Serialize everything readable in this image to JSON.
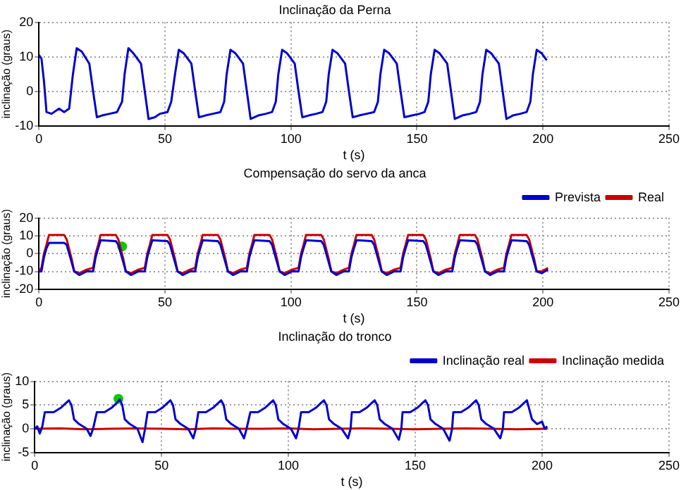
{
  "chart_data": [
    {
      "type": "line",
      "title": "Inclinação da Perna",
      "xlabel": "t (s)",
      "ylabel": "inclinação (graus)",
      "xlim": [
        0,
        250
      ],
      "xticks": [
        0,
        50,
        100,
        150,
        200,
        250
      ],
      "ylim": [
        -10,
        20
      ],
      "yticks": [
        -10,
        0,
        10,
        20
      ],
      "grid": true,
      "legend": false,
      "series": [
        {
          "color": "#0000cc",
          "x": [
            0,
            1,
            2,
            3,
            5,
            8,
            10,
            12,
            13.5,
            15,
            17,
            20,
            21.5,
            23,
            25,
            28,
            31,
            33,
            34,
            35.5,
            37.5,
            40.5,
            42,
            43.5,
            46,
            48,
            51,
            52.5,
            54,
            55.5,
            57.5,
            60.5,
            62,
            63.5,
            66,
            69,
            72,
            73.5,
            74.5,
            76,
            78,
            81,
            82.5,
            84,
            87,
            90,
            92.5,
            94,
            95,
            96.5,
            98.5,
            101.5,
            103,
            104.5,
            107,
            110,
            112.5,
            114,
            115,
            116.5,
            118.5,
            121.5,
            123,
            124.5,
            127,
            130,
            133,
            134.5,
            135.5,
            137,
            139,
            142,
            143.5,
            145,
            148,
            151,
            153,
            154.5,
            155.5,
            157,
            159,
            162,
            163.5,
            165,
            168,
            171,
            173.5,
            175,
            176,
            177.5,
            179.5,
            182.5,
            184,
            185.5,
            188,
            191,
            193.5,
            195,
            196,
            197.5,
            199.5,
            201.5
          ],
          "values": [
            10.5,
            9.5,
            3,
            -6,
            -6.5,
            -5,
            -6,
            -5,
            5,
            12.5,
            11.5,
            8,
            0,
            -7.5,
            -7,
            -6.5,
            -6,
            -3,
            5,
            12.5,
            11,
            8,
            0,
            -8,
            -7.5,
            -6.5,
            -6,
            -3,
            5,
            12,
            11,
            8,
            0,
            -7.5,
            -7,
            -6.5,
            -6,
            -3,
            5,
            12,
            11,
            8,
            0,
            -8,
            -7,
            -6.5,
            -6,
            -3,
            5,
            12,
            11,
            8,
            0,
            -7.5,
            -7,
            -6.5,
            -6,
            -3,
            5,
            12,
            11,
            8,
            0,
            -7.5,
            -7,
            -6.5,
            -6,
            -3,
            5,
            12,
            11,
            8,
            0,
            -7.5,
            -7,
            -6.5,
            -6,
            -3,
            5,
            12,
            11,
            8,
            0,
            -8,
            -7,
            -6.5,
            -6,
            -3,
            5,
            12,
            11,
            8,
            0,
            -8,
            -7,
            -6.5,
            -6,
            -3,
            5,
            12,
            11,
            9
          ]
        }
      ]
    },
    {
      "type": "line",
      "title": "Compensação do servo da anca",
      "xlabel": "t (s)",
      "ylabel": "inclinação (graus)",
      "xlim": [
        0,
        250
      ],
      "xticks": [
        0,
        50,
        100,
        150,
        200,
        250
      ],
      "ylim": [
        -20,
        20
      ],
      "yticks": [
        -20,
        -10,
        0,
        10,
        20
      ],
      "grid": true,
      "legend": "top right",
      "series": [
        {
          "name": "Prevista",
          "color": "#0000cc",
          "x": [
            0,
            1,
            2,
            3,
            4,
            10,
            11,
            13,
            14,
            16,
            19,
            21.5,
            22.5,
            23.5,
            24.5,
            30.5,
            31.5,
            33.5,
            34.5,
            36.5,
            39.5,
            42,
            43,
            44,
            45,
            51,
            52,
            54,
            55,
            57,
            60,
            62,
            63,
            64,
            65,
            71,
            72,
            74,
            75,
            77,
            80,
            82.5,
            83.5,
            84.5,
            85.5,
            91.5,
            92.5,
            94.5,
            95.5,
            97.5,
            100.5,
            103,
            104,
            105,
            106,
            112,
            113,
            115,
            116,
            118,
            121,
            123,
            124,
            125,
            126,
            132,
            133,
            135,
            136,
            138,
            141,
            143.5,
            144.5,
            145.5,
            146.5,
            152.5,
            153.5,
            155.5,
            156.5,
            158.5,
            161.5,
            164,
            165,
            166,
            167,
            173,
            174,
            176,
            177,
            179,
            182,
            184.5,
            185.5,
            186.5,
            187.5,
            193.5,
            194.5,
            196.5,
            197.5,
            199.5,
            202
          ],
          "values": [
            -10,
            -10,
            -2,
            3,
            6,
            6,
            5,
            -5,
            -10,
            -12,
            -10,
            -10,
            -2,
            3,
            7.5,
            7,
            5,
            -5,
            -10,
            -12,
            -10,
            -10,
            -2,
            3,
            7.5,
            7,
            5,
            -5,
            -10,
            -12,
            -10,
            -10,
            -2,
            3,
            7.5,
            7,
            5,
            -5,
            -10,
            -12,
            -10,
            -10,
            -2,
            3,
            7.5,
            7,
            5,
            -5,
            -10,
            -12,
            -10,
            -10,
            -2,
            3,
            7.5,
            7,
            5,
            -5,
            -10,
            -12,
            -10,
            -10,
            -2,
            3,
            7.5,
            7,
            5,
            -5,
            -10,
            -12,
            -10,
            -10,
            -2,
            3,
            7.5,
            7,
            5,
            -5,
            -10,
            -12,
            -10,
            -10,
            -2,
            3,
            7.5,
            7,
            5,
            -5,
            -10,
            -12,
            -10,
            -10,
            -2,
            3,
            7.5,
            7,
            5,
            -5,
            -10,
            -11,
            -9
          ]
        },
        {
          "name": "Real",
          "color": "#cc0000",
          "x": [
            0,
            1,
            2,
            3,
            4,
            10,
            11,
            13,
            14,
            16,
            19,
            21.5,
            22.5,
            23.5,
            24.5,
            30.5,
            31.5,
            33.5,
            34.5,
            36.5,
            39.5,
            42,
            43,
            44,
            45,
            51,
            52,
            54,
            55,
            57,
            60,
            62,
            63,
            64,
            65,
            71,
            72,
            74,
            75,
            77,
            80,
            82.5,
            83.5,
            84.5,
            85.5,
            91.5,
            92.5,
            94.5,
            95.5,
            97.5,
            100.5,
            103,
            104,
            105,
            106,
            112,
            113,
            115,
            116,
            118,
            121,
            123,
            124,
            125,
            126,
            132,
            133,
            135,
            136,
            138,
            141,
            143.5,
            144.5,
            145.5,
            146.5,
            152.5,
            153.5,
            155.5,
            156.5,
            158.5,
            161.5,
            164,
            165,
            166,
            167,
            173,
            174,
            176,
            177,
            179,
            182,
            184.5,
            185.5,
            186.5,
            187.5,
            193.5,
            194.5,
            196.5,
            197.5,
            199.5,
            202
          ],
          "values": [
            -10,
            -8,
            0,
            5,
            10.5,
            10.5,
            8,
            -3,
            -10,
            -11,
            -9,
            -8,
            0,
            5,
            10.5,
            10.5,
            8,
            -3,
            -10,
            -11,
            -9,
            -8,
            0,
            5,
            10.5,
            10.5,
            8,
            -3,
            -10,
            -11,
            -9,
            -8,
            0,
            5,
            10.5,
            10.5,
            8,
            -3,
            -10,
            -11,
            -9,
            -8,
            0,
            5,
            10.5,
            10.5,
            8,
            -3,
            -10,
            -11,
            -9,
            -8,
            0,
            5,
            10.5,
            10.5,
            8,
            -3,
            -10,
            -11,
            -9,
            -8,
            0,
            5,
            10.5,
            10.5,
            8,
            -3,
            -10,
            -11,
            -9,
            -8,
            0,
            5,
            10.5,
            10.5,
            8,
            -3,
            -10,
            -11,
            -9,
            -8,
            0,
            5,
            10.5,
            10.5,
            8,
            -3,
            -10,
            -11,
            -9,
            -8,
            0,
            5,
            10.5,
            10.5,
            8,
            -3,
            -10,
            -10,
            -8
          ]
        },
        {
          "type": "scatter",
          "color": "#00cc00",
          "marker": "circle",
          "x": [
            33
          ],
          "values": [
            4
          ]
        }
      ]
    },
    {
      "type": "line",
      "title": "Inclinação do tronco",
      "xlabel": "t (s)",
      "ylabel": "inclinação (graus)",
      "xlim": [
        0,
        250
      ],
      "xticks": [
        0,
        50,
        100,
        150,
        200,
        250
      ],
      "ylim": [
        -5,
        10
      ],
      "yticks": [
        -5,
        0,
        5,
        10
      ],
      "grid": true,
      "legend": "top right",
      "series": [
        {
          "name": "Inclinação real",
          "color": "#0000cc",
          "x": [
            0,
            1,
            2,
            3,
            4,
            7.5,
            10.5,
            12.5,
            13.5,
            14.5,
            15.5,
            17.5,
            20.5,
            22,
            23,
            24.5,
            27.5,
            30.5,
            32.5,
            33.5,
            34.5,
            35.5,
            37.5,
            40.5,
            42.5,
            43.5,
            44.5,
            47.5,
            50.5,
            52.5,
            53.5,
            54.5,
            55.5,
            57.5,
            60.5,
            62.5,
            63.5,
            64.5,
            67.5,
            70.5,
            72.5,
            73.5,
            74.5,
            75.5,
            77.5,
            80.5,
            82.5,
            83.5,
            85,
            88,
            91,
            93,
            94,
            95,
            96,
            98,
            101,
            103,
            104,
            105,
            108,
            111,
            113,
            114,
            115,
            116,
            118,
            121,
            123.5,
            124.5,
            125,
            128,
            131,
            133,
            134,
            135,
            136,
            138,
            141,
            143.5,
            144.5,
            145,
            148,
            151,
            153,
            154,
            155,
            156,
            158,
            161,
            163.5,
            164.5,
            165,
            168,
            171,
            173,
            174,
            175,
            176,
            178,
            181,
            183.5,
            184.5,
            185,
            188,
            191,
            193,
            194,
            195,
            196,
            198,
            200,
            201,
            202
          ],
          "values": [
            0,
            0.5,
            -1,
            0.5,
            3.5,
            3.5,
            4.5,
            5.5,
            6,
            5,
            2,
            1,
            0,
            -1.5,
            0,
            3.5,
            3.5,
            4.5,
            5.5,
            6.2,
            5,
            2,
            1,
            0,
            -2.8,
            0,
            3.5,
            3.5,
            4.5,
            5.5,
            6,
            5,
            2,
            1,
            0,
            -2,
            0,
            3.5,
            3.5,
            4.5,
            5.5,
            6,
            5,
            2,
            1,
            0,
            -2,
            0,
            3.5,
            3.5,
            4.5,
            5.5,
            6,
            5,
            2,
            1,
            0,
            -2,
            0,
            3.5,
            3.5,
            4.5,
            5.5,
            6,
            5,
            2,
            1,
            0,
            -2,
            0,
            3.5,
            3.5,
            4.5,
            5.5,
            6,
            5,
            2,
            1,
            0,
            -2.3,
            0,
            3.5,
            3.5,
            4.5,
            5.5,
            6,
            5,
            2,
            1,
            0,
            -2.5,
            0,
            3.5,
            3.5,
            4.5,
            5.5,
            6,
            5,
            2,
            1,
            0,
            -2,
            0,
            3.5,
            3.5,
            4.5,
            5.5,
            6,
            4,
            2,
            1,
            1.5,
            0,
            0.5
          ]
        },
        {
          "name": "Inclinação medida",
          "color": "#cc0000",
          "x": [
            0,
            10,
            20,
            30,
            40,
            50,
            60,
            70,
            80,
            90,
            100,
            110,
            120,
            130,
            140,
            150,
            160,
            170,
            180,
            190,
            202
          ],
          "values": [
            0,
            0.1,
            -0.1,
            0,
            0.1,
            0,
            -0.1,
            0.1,
            0,
            0,
            0.1,
            -0.1,
            0,
            0.1,
            0,
            -0.1,
            0,
            0.1,
            0,
            -0.1,
            0
          ]
        },
        {
          "type": "scatter",
          "color": "#00cc00",
          "marker": "circle",
          "x": [
            33
          ],
          "values": [
            6.3
          ]
        }
      ]
    }
  ]
}
